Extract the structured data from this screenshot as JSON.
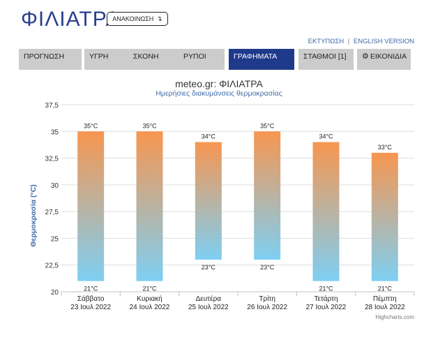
{
  "header": {
    "city": "ΦΙΛΙΑΤΡΑ",
    "announce_label": "ΑΝΑΚΟΙΝΩΣΗ",
    "announce_arrow": "↴"
  },
  "top_links": {
    "print": "ΕΚΤΥΠΩΣΗ",
    "separator": "|",
    "english": "ENGLISH VERSION"
  },
  "tabs": [
    {
      "label": "ΠΡΟΓΝΩΣΗ"
    },
    {
      "label": "ΥΓΡΗ"
    },
    {
      "label": "ΣΚΟΝΗ"
    },
    {
      "label": "ΡΥΠΟΙ"
    },
    {
      "label": "ΓΡΑΦΗΜΑΤΑ"
    },
    {
      "label": "ΣΤΑΘΜΟΙ [1]"
    },
    {
      "label": "ΕΙΚΟΝΙΔΙΑ",
      "icon": "gear-icon"
    }
  ],
  "active_tab": 4,
  "chart_data": {
    "type": "columnrange",
    "title": "meteo.gr: ΦΙΛΙΑΤΡΑ",
    "subtitle": "Ημερήσιες διακυμάνσεις θερμοκρασίας",
    "ylabel": "Θερμοκρασία (°C)",
    "xlabel": "",
    "ylim": [
      20,
      37.5
    ],
    "yticks": [
      "20",
      "22,5",
      "25",
      "27,5",
      "30",
      "32,5",
      "35",
      "37,5"
    ],
    "ytick_values": [
      20,
      22.5,
      25,
      27.5,
      30,
      32.5,
      35,
      37.5
    ],
    "categories": [
      {
        "day": "Σάββατο",
        "date": "23 Ιουλ 2022"
      },
      {
        "day": "Κυριακή",
        "date": "24 Ιουλ 2022"
      },
      {
        "day": "Δευτέρα",
        "date": "25 Ιουλ 2022"
      },
      {
        "day": "Τρίτη",
        "date": "26 Ιουλ 2022"
      },
      {
        "day": "Τετάρτη",
        "date": "27 Ιουλ 2022"
      },
      {
        "day": "Πέμπτη",
        "date": "28 Ιουλ 2022"
      }
    ],
    "series": [
      {
        "low": [
          21,
          21,
          23,
          23,
          21,
          21
        ],
        "high": [
          35,
          35,
          34,
          35,
          34,
          33
        ]
      }
    ],
    "low_labels": [
      "21°C",
      "21°C",
      "23°C",
      "23°C",
      "21°C",
      "21°C"
    ],
    "high_labels": [
      "35°C",
      "35°C",
      "34°C",
      "35°C",
      "34°C",
      "33°C"
    ],
    "grid": true,
    "colors": {
      "warm": "#f79650",
      "cool": "#7ecff3",
      "title": "#333333",
      "subtitle": "#3f6ca8",
      "ylabel": "#3f6ca8"
    },
    "credits": "Highcharts.com"
  }
}
